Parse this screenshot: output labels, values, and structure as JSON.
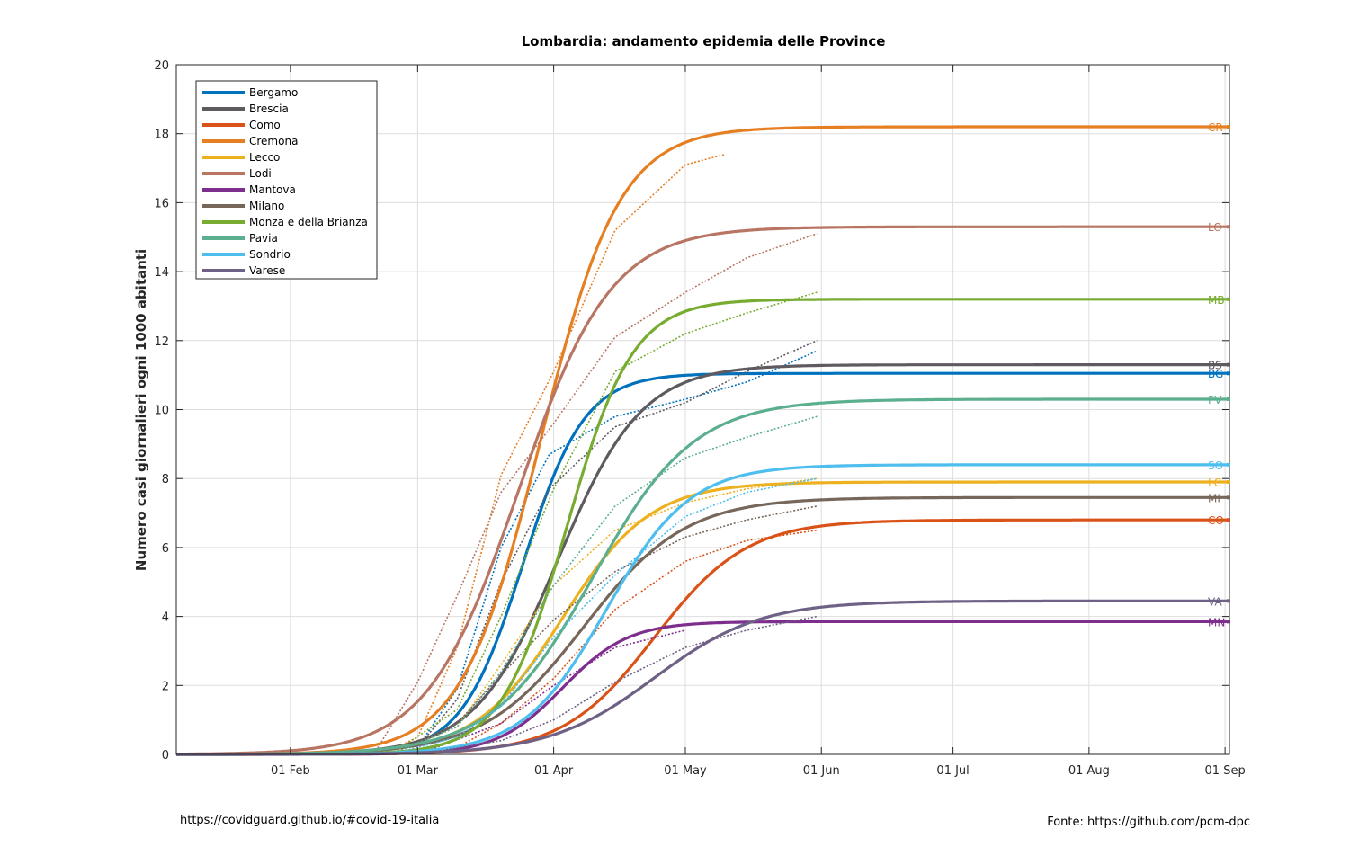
{
  "footer": {
    "left": "https://covidguard.github.io/#covid-19-italia",
    "right": "Fonte: https://github.com/pcm-dpc"
  },
  "chart_data": {
    "type": "line",
    "title": "Lombardia: andamento epidemia delle Province",
    "ylabel": "Numero casi giornalieri ogni 1000 abitanti",
    "xlabel": "",
    "x_axis": {
      "type": "date",
      "range": [
        "2020-01-06",
        "2020-09-02"
      ],
      "ticks": [
        "2020-02-01",
        "2020-03-01",
        "2020-04-01",
        "2020-05-01",
        "2020-06-01",
        "2020-07-01",
        "2020-08-01",
        "2020-09-01"
      ],
      "tick_labels": [
        "01 Feb",
        "01 Mar",
        "01 Apr",
        "01 May",
        "01 Jun",
        "01 Jul",
        "01 Aug",
        "01 Sep"
      ]
    },
    "y_axis": {
      "range": [
        0,
        20
      ],
      "ticks": [
        0,
        2,
        4,
        6,
        8,
        10,
        12,
        14,
        16,
        18,
        20
      ]
    },
    "grid": true,
    "legend_position": "top-left",
    "series": [
      {
        "name": "Bergamo",
        "abbr": "BG",
        "color": "#0072BD",
        "fit": {
          "final": 11.05,
          "midpoint": "2020-03-25",
          "width_days": 7.0
        },
        "observed": [
          [
            "2020-02-24",
            0.0
          ],
          [
            "2020-03-01",
            0.2
          ],
          [
            "2020-03-10",
            1.9
          ],
          [
            "2020-03-20",
            6.0
          ],
          [
            "2020-03-31",
            8.7
          ],
          [
            "2020-04-15",
            9.8
          ],
          [
            "2020-05-01",
            10.3
          ],
          [
            "2020-05-15",
            10.8
          ],
          [
            "2020-05-31",
            11.7
          ]
        ]
      },
      {
        "name": "Brescia",
        "abbr": "BS",
        "color": "#5F5A60",
        "fit": {
          "final": 11.3,
          "midpoint": "2020-04-02",
          "width_days": 9.5
        },
        "observed": [
          [
            "2020-02-24",
            0.0
          ],
          [
            "2020-03-01",
            0.2
          ],
          [
            "2020-03-10",
            1.6
          ],
          [
            "2020-03-20",
            5.0
          ],
          [
            "2020-03-31",
            7.7
          ],
          [
            "2020-04-15",
            9.5
          ],
          [
            "2020-05-01",
            10.2
          ],
          [
            "2020-05-15",
            11.1
          ],
          [
            "2020-05-31",
            12.0
          ]
        ]
      },
      {
        "name": "Como",
        "abbr": "CO",
        "color": "#D95319",
        "fit": {
          "final": 6.8,
          "midpoint": "2020-04-24",
          "width_days": 10.5
        },
        "observed": [
          [
            "2020-02-24",
            0.0
          ],
          [
            "2020-03-10",
            0.2
          ],
          [
            "2020-03-20",
            0.9
          ],
          [
            "2020-04-01",
            2.2
          ],
          [
            "2020-04-15",
            4.2
          ],
          [
            "2020-05-01",
            5.6
          ],
          [
            "2020-05-15",
            6.2
          ],
          [
            "2020-05-31",
            6.5
          ]
        ]
      },
      {
        "name": "Cremona",
        "abbr": "CR",
        "color": "#E67E22",
        "fit": {
          "final": 18.2,
          "midpoint": "2020-03-29",
          "width_days": 9.0
        },
        "observed": [
          [
            "2020-02-22",
            0.0
          ],
          [
            "2020-03-01",
            0.5
          ],
          [
            "2020-03-10",
            3.1
          ],
          [
            "2020-03-20",
            8.1
          ],
          [
            "2020-04-01",
            11.1
          ],
          [
            "2020-04-15",
            15.2
          ],
          [
            "2020-05-01",
            17.1
          ],
          [
            "2020-05-10",
            17.4
          ]
        ]
      },
      {
        "name": "Lecco",
        "abbr": "LC",
        "color": "#EDB120",
        "fit": {
          "final": 7.9,
          "midpoint": "2020-04-03",
          "width_days": 10.0
        },
        "observed": [
          [
            "2020-02-24",
            0.0
          ],
          [
            "2020-03-10",
            0.8
          ],
          [
            "2020-03-20",
            2.6
          ],
          [
            "2020-04-01",
            4.9
          ],
          [
            "2020-04-15",
            6.5
          ],
          [
            "2020-05-01",
            7.3
          ],
          [
            "2020-05-15",
            7.7
          ],
          [
            "2020-05-31",
            8.0
          ]
        ]
      },
      {
        "name": "Lodi",
        "abbr": "LO",
        "color": "#B87563",
        "fit": {
          "final": 15.3,
          "midpoint": "2020-03-24",
          "width_days": 10.5
        },
        "observed": [
          [
            "2020-02-20",
            0.0
          ],
          [
            "2020-03-01",
            2.1
          ],
          [
            "2020-03-10",
            4.6
          ],
          [
            "2020-03-20",
            7.6
          ],
          [
            "2020-04-01",
            9.6
          ],
          [
            "2020-04-15",
            12.1
          ],
          [
            "2020-05-01",
            13.4
          ],
          [
            "2020-05-15",
            14.4
          ],
          [
            "2020-05-31",
            15.1
          ]
        ]
      },
      {
        "name": "Mantova",
        "abbr": "MN",
        "color": "#7E2F8E",
        "fit": {
          "final": 3.85,
          "midpoint": "2020-04-03",
          "width_days": 7.5
        },
        "observed": [
          [
            "2020-03-01",
            0.0
          ],
          [
            "2020-03-20",
            0.9
          ],
          [
            "2020-04-01",
            2.0
          ],
          [
            "2020-04-15",
            3.1
          ],
          [
            "2020-05-01",
            3.6
          ]
        ]
      },
      {
        "name": "Milano",
        "abbr": "MI",
        "color": "#77675A",
        "fit": {
          "final": 7.45,
          "midpoint": "2020-04-08",
          "width_days": 11.5
        },
        "observed": [
          [
            "2020-02-24",
            0.0
          ],
          [
            "2020-03-10",
            0.9
          ],
          [
            "2020-03-20",
            2.3
          ],
          [
            "2020-04-01",
            3.9
          ],
          [
            "2020-04-15",
            5.3
          ],
          [
            "2020-05-01",
            6.3
          ],
          [
            "2020-05-15",
            6.8
          ],
          [
            "2020-05-31",
            7.2
          ]
        ]
      },
      {
        "name": "Monza e della Brianza",
        "abbr": "MB",
        "color": "#77AC30",
        "fit": {
          "final": 13.2,
          "midpoint": "2020-04-04",
          "width_days": 7.5
        },
        "observed": [
          [
            "2020-02-24",
            0.0
          ],
          [
            "2020-03-10",
            1.3
          ],
          [
            "2020-03-20",
            4.0
          ],
          [
            "2020-04-01",
            7.7
          ],
          [
            "2020-04-15",
            11.1
          ],
          [
            "2020-05-01",
            12.2
          ],
          [
            "2020-05-15",
            12.8
          ],
          [
            "2020-05-31",
            13.4
          ]
        ]
      },
      {
        "name": "Pavia",
        "abbr": "PV",
        "color": "#5BAE8E",
        "fit": {
          "final": 10.3,
          "midpoint": "2020-04-10",
          "width_days": 11.5
        },
        "observed": [
          [
            "2020-02-24",
            0.0
          ],
          [
            "2020-03-10",
            0.8
          ],
          [
            "2020-03-20",
            2.4
          ],
          [
            "2020-04-01",
            4.9
          ],
          [
            "2020-04-15",
            7.2
          ],
          [
            "2020-05-01",
            8.6
          ],
          [
            "2020-05-15",
            9.2
          ],
          [
            "2020-05-31",
            9.8
          ]
        ]
      },
      {
        "name": "Sondrio",
        "abbr": "SO",
        "color": "#4DBEEE",
        "fit": {
          "final": 8.4,
          "midpoint": "2020-04-13",
          "width_days": 9.5
        },
        "observed": [
          [
            "2020-02-24",
            0.0
          ],
          [
            "2020-03-10",
            0.5
          ],
          [
            "2020-03-20",
            1.4
          ],
          [
            "2020-04-01",
            3.4
          ],
          [
            "2020-04-15",
            5.2
          ],
          [
            "2020-05-01",
            6.9
          ],
          [
            "2020-05-15",
            7.6
          ],
          [
            "2020-05-31",
            8.0
          ]
        ]
      },
      {
        "name": "Varese",
        "abbr": "VA",
        "color": "#6E6185",
        "fit": {
          "final": 4.45,
          "midpoint": "2020-04-24",
          "width_days": 12.0
        },
        "observed": [
          [
            "2020-03-01",
            0.0
          ],
          [
            "2020-03-20",
            0.4
          ],
          [
            "2020-04-01",
            1.0
          ],
          [
            "2020-04-15",
            2.1
          ],
          [
            "2020-05-01",
            3.1
          ],
          [
            "2020-05-15",
            3.6
          ],
          [
            "2020-05-31",
            4.0
          ]
        ]
      }
    ]
  }
}
